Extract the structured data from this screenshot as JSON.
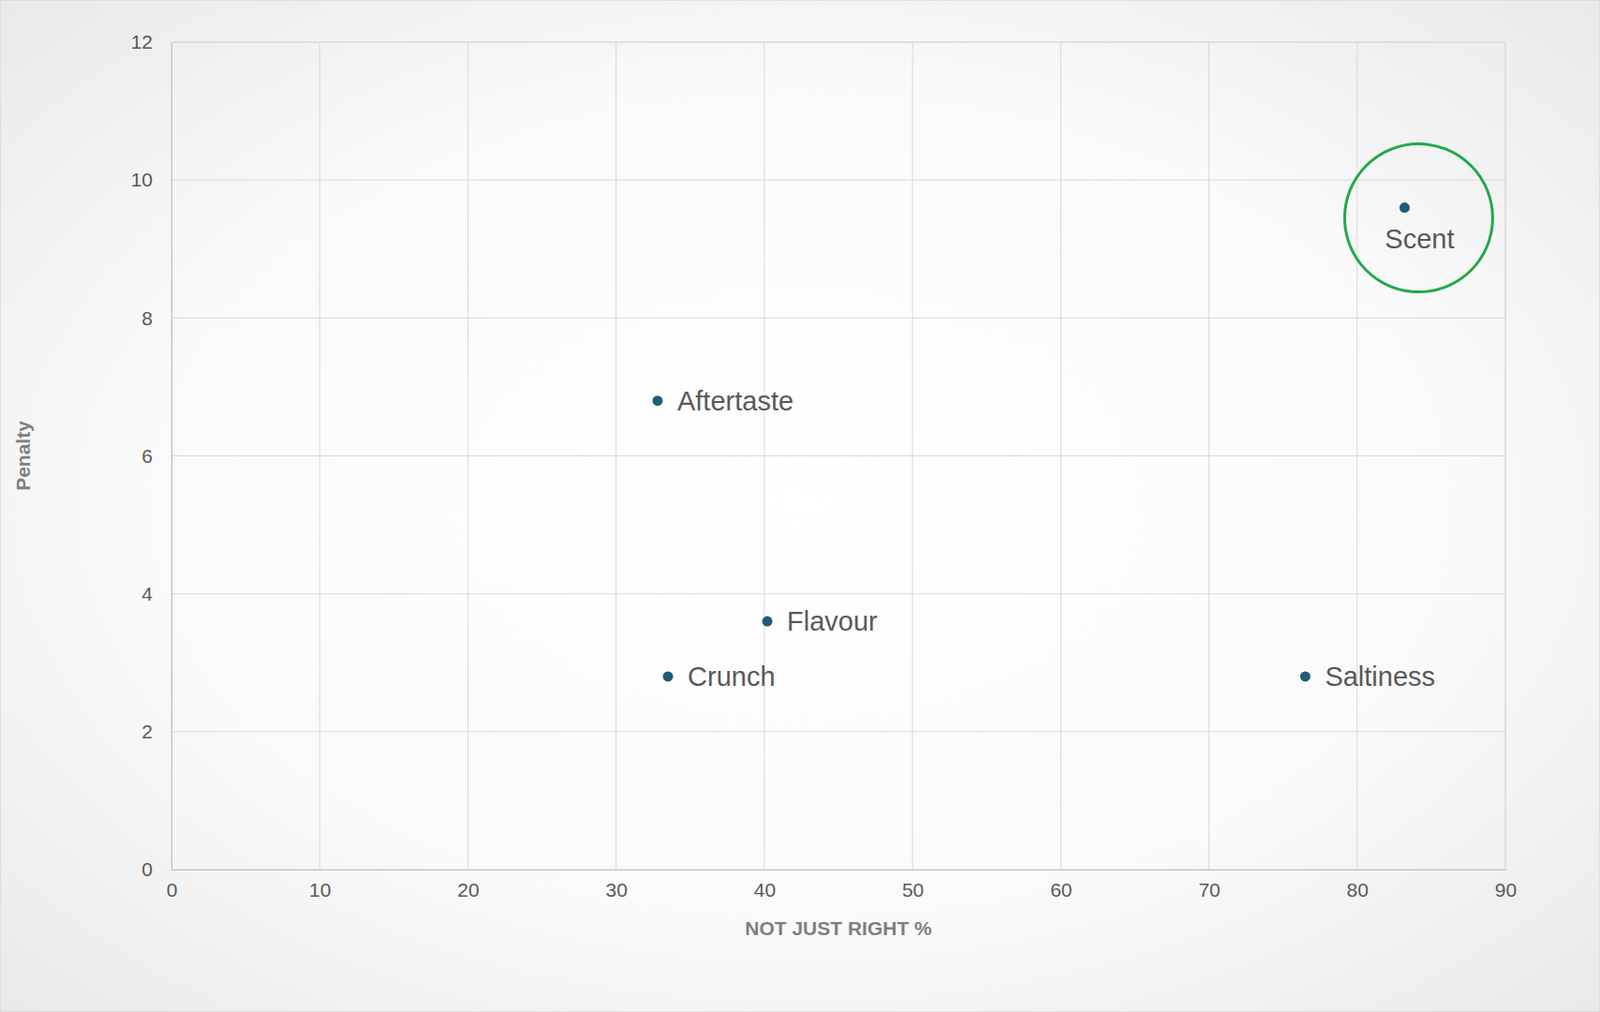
{
  "chart_data": {
    "type": "scatter",
    "x_label": "NOT JUST RIGHT %",
    "y_label": "Penalty",
    "point_labels": [
      "Aftertaste",
      "Flavour",
      "Crunch",
      "Saltiness",
      "Scent"
    ],
    "x": [
      32.8,
      40.2,
      33.5,
      76.5,
      83.2
    ],
    "values": [
      6.8,
      3.6,
      2.8,
      2.8,
      9.6
    ],
    "color": "#1f5c7a",
    "marker": "circle",
    "xlim": [
      0,
      90
    ],
    "xticks": [
      0,
      10,
      20,
      30,
      40,
      50,
      60,
      70,
      80,
      90
    ],
    "ylim": [
      0,
      12
    ],
    "yticks": [
      0,
      2,
      4,
      6,
      8,
      10,
      12
    ],
    "grid": true
  }
}
